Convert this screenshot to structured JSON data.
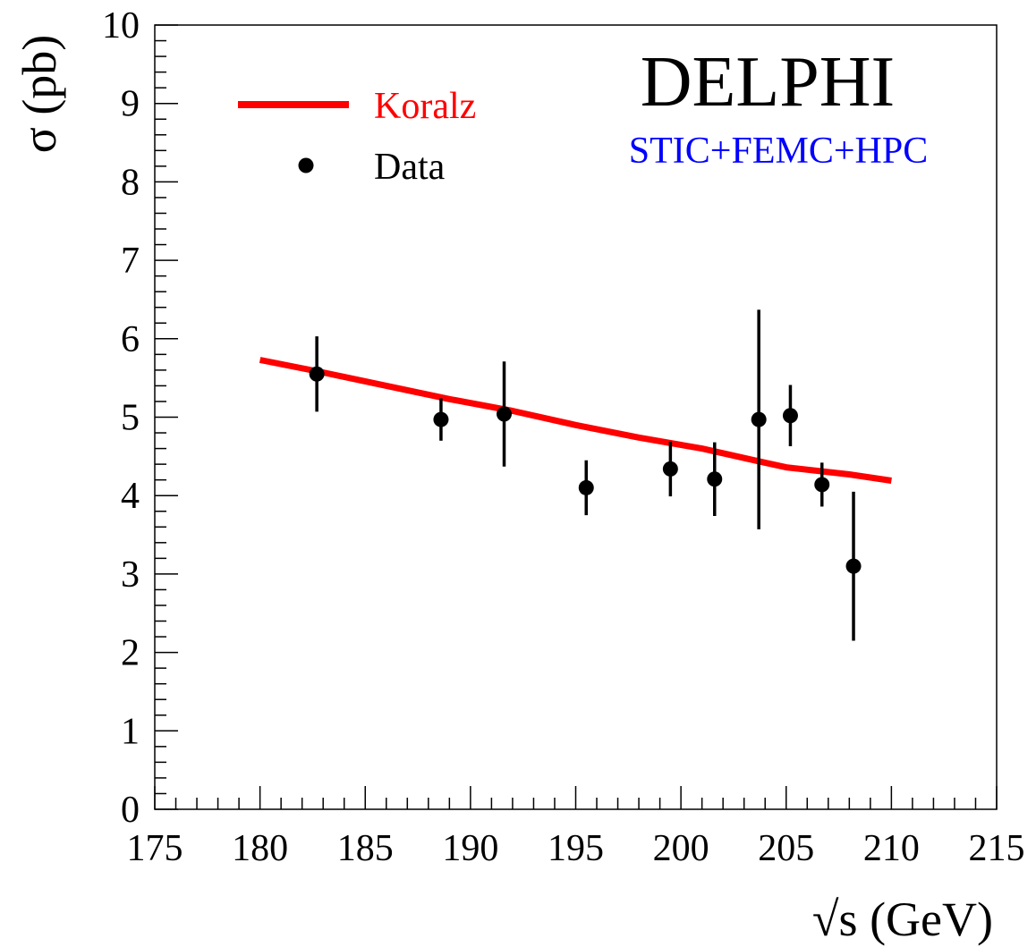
{
  "chart_data": {
    "type": "scatter",
    "title": "DELPHI",
    "subtitle": "STIC+FEMC+HPC",
    "xlabel": "√s (GeV)",
    "ylabel": "σ (pb)",
    "xlim": [
      175,
      215
    ],
    "ylim": [
      0,
      10
    ],
    "x_major_ticks": [
      175,
      180,
      185,
      190,
      195,
      200,
      205,
      210,
      215
    ],
    "y_major_ticks": [
      0,
      1,
      2,
      3,
      4,
      5,
      6,
      7,
      8,
      9,
      10
    ],
    "x_tick_labels": [
      "175",
      "180",
      "185",
      "190",
      "195",
      "200",
      "205",
      "210",
      "215"
    ],
    "y_tick_labels": [
      "0",
      "1",
      "2",
      "3",
      "4",
      "5",
      "6",
      "7",
      "8",
      "9",
      "10"
    ],
    "grid": false,
    "legend_position": "top-left",
    "series": [
      {
        "name": "Koralz",
        "kind": "line",
        "color": "#ff0000",
        "x": [
          180,
          183,
          186,
          189,
          192,
          195,
          198,
          201,
          204,
          205,
          207,
          208,
          210
        ],
        "y": [
          5.73,
          5.57,
          5.4,
          5.23,
          5.08,
          4.9,
          4.74,
          4.6,
          4.42,
          4.36,
          4.3,
          4.27,
          4.19
        ]
      },
      {
        "name": "Data",
        "kind": "points",
        "color": "#000000",
        "x": [
          182.7,
          188.6,
          191.6,
          195.5,
          199.5,
          201.6,
          203.7,
          205.2,
          206.7,
          208.2
        ],
        "y": [
          5.55,
          4.97,
          5.04,
          4.1,
          4.34,
          4.21,
          4.97,
          5.02,
          4.14,
          3.1
        ],
        "err": [
          0.48,
          0.27,
          0.67,
          0.35,
          0.35,
          0.47,
          1.4,
          0.39,
          0.28,
          0.95
        ]
      }
    ]
  }
}
